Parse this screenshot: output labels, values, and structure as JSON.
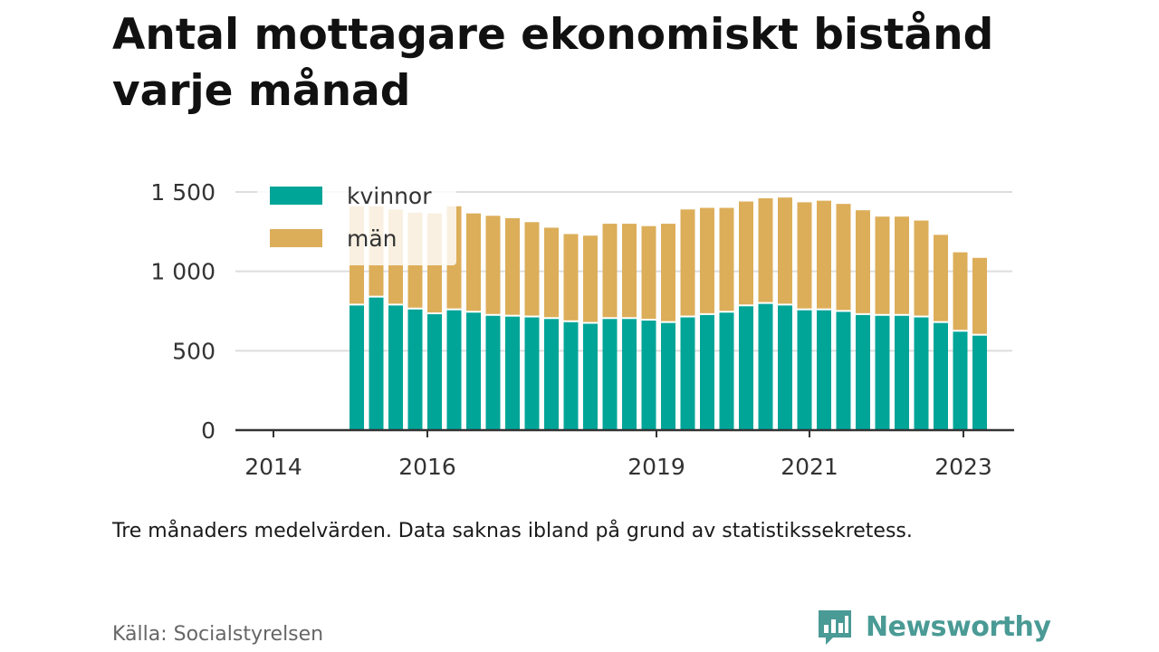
{
  "title": "Antal mottagare ekonomiskt bistånd varje månad",
  "note": "Tre månaders medelvärden. Data saknas ibland på grund av statistikssekretess.",
  "source": "Källa: Socialstyrelsen",
  "brand": {
    "name": "Newsworthy",
    "icon": "bar-chart-badge-icon"
  },
  "colors": {
    "kvinnor": "#00a598",
    "man": "#dcae5a",
    "grid": "#dddddd",
    "axis": "#333333"
  },
  "chart_data": {
    "type": "bar",
    "stacked": true,
    "title": "Antal mottagare ekonomiskt bistånd varje månad",
    "x_ticks": [
      "2014",
      "2016",
      "2019",
      "2021",
      "2023"
    ],
    "y_ticks": [
      "0",
      "500",
      "1 000",
      "1 500"
    ],
    "y_tick_values": [
      0,
      500,
      1000,
      1500
    ],
    "ylim": [
      0,
      1500
    ],
    "legend": {
      "position": "top-left",
      "entries": [
        "kvinnor",
        "män"
      ]
    },
    "grid": true,
    "series": [
      {
        "name": "kvinnor",
        "values": [
          785,
          835,
          785,
          760,
          730,
          755,
          740,
          720,
          715,
          710,
          700,
          680,
          670,
          700,
          700,
          690,
          675,
          710,
          725,
          740,
          780,
          795,
          785,
          755,
          755,
          745,
          725,
          720,
          720,
          710,
          675,
          620,
          595
        ]
      },
      {
        "name": "män",
        "values": [
          625,
          575,
          605,
          610,
          635,
          655,
          625,
          630,
          620,
          600,
          575,
          555,
          555,
          600,
          600,
          595,
          625,
          680,
          675,
          660,
          660,
          665,
          680,
          680,
          690,
          680,
          660,
          625,
          625,
          610,
          555,
          500,
          490
        ]
      }
    ]
  }
}
